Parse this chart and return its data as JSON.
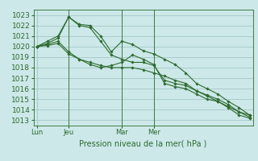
{
  "title": "Pression niveau de la mer( hPa )",
  "bg_color": "#cce8e8",
  "grid_color": "#aacccc",
  "line_color": "#2d6b2d",
  "ylim": [
    1012.5,
    1023.5
  ],
  "yticks": [
    1013,
    1014,
    1015,
    1016,
    1017,
    1018,
    1019,
    1020,
    1021,
    1022,
    1023
  ],
  "xtick_labels": [
    "Lun",
    "Jeu",
    "Mar",
    "Mer"
  ],
  "xtick_positions": [
    0,
    3,
    8,
    11
  ],
  "vline_positions": [
    3,
    8,
    11
  ],
  "n_points": 21,
  "series": [
    [
      1020.0,
      1020.5,
      1021.0,
      1022.8,
      1022.1,
      1022.0,
      1021.0,
      1019.5,
      1020.5,
      1020.2,
      1019.6,
      1019.3,
      1018.8,
      1018.3,
      1017.5,
      1016.5,
      1016.0,
      1015.5,
      1014.8,
      1014.2,
      1013.5
    ],
    [
      1020.0,
      1020.3,
      1020.8,
      1022.8,
      1022.0,
      1021.8,
      1020.5,
      1019.2,
      1018.8,
      1018.5,
      1018.5,
      1018.2,
      1016.8,
      1016.5,
      1016.3,
      1015.8,
      1015.4,
      1015.0,
      1014.5,
      1013.8,
      1013.5
    ],
    [
      1020.0,
      1020.2,
      1020.5,
      1019.5,
      1018.8,
      1018.3,
      1018.0,
      1018.2,
      1018.5,
      1019.2,
      1018.8,
      1018.3,
      1016.5,
      1016.2,
      1016.0,
      1015.5,
      1015.0,
      1014.8,
      1014.2,
      1013.5,
      1013.2
    ],
    [
      1020.0,
      1020.1,
      1020.3,
      1019.3,
      1018.8,
      1018.5,
      1018.2,
      1018.0,
      1018.0,
      1018.0,
      1017.8,
      1017.5,
      1017.2,
      1016.8,
      1016.5,
      1015.8,
      1015.3,
      1014.8,
      1014.3,
      1013.8,
      1013.3
    ]
  ],
  "title_fontsize": 7,
  "xlabel_fontsize": 6,
  "ylabel_fontsize": 6.5
}
